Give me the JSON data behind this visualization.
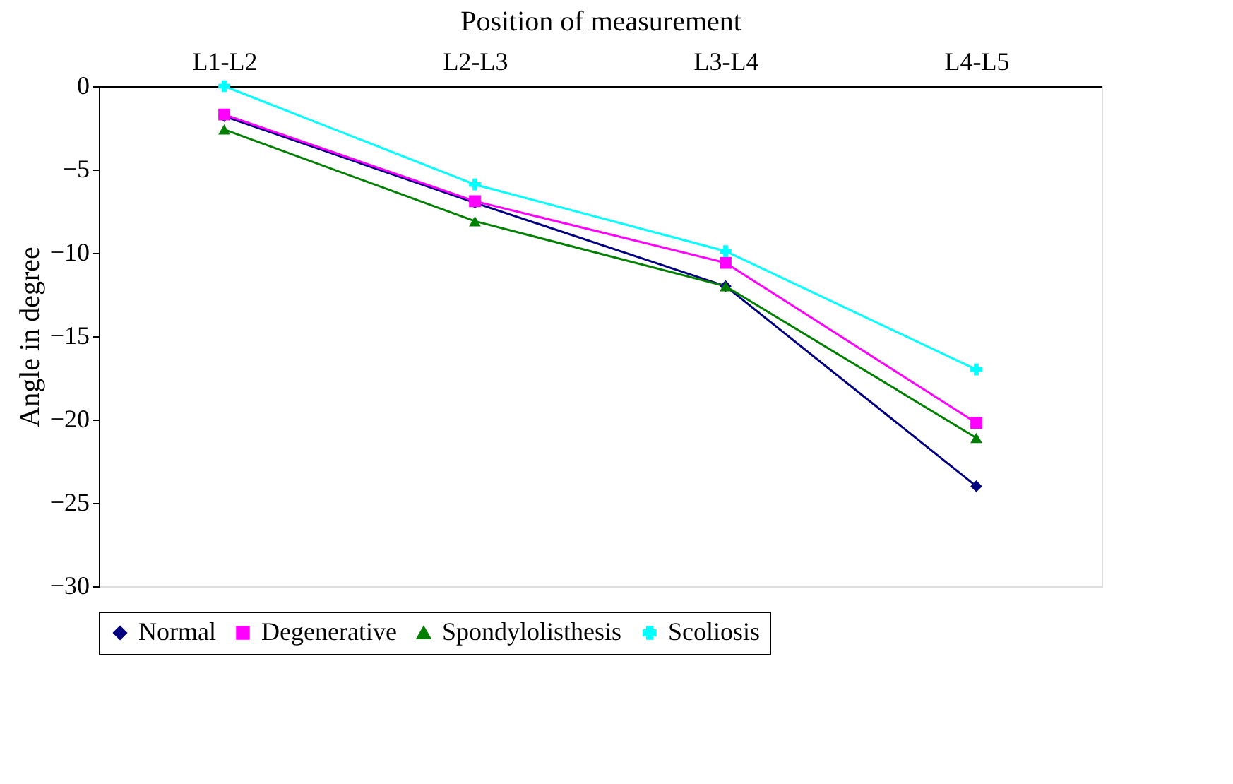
{
  "chart_data": {
    "type": "line",
    "xlabel": "Position of measurement",
    "ylabel": "Angle in degree",
    "categories": [
      "L1-L2",
      "L2-L3",
      "L3-L4",
      "L4-L5"
    ],
    "series": [
      {
        "name": "Normal",
        "color": "#000080",
        "marker": "diamond",
        "values": [
          -1.8,
          -7.0,
          -12.0,
          -24.0
        ]
      },
      {
        "name": "Degenerative",
        "color": "#ff00ff",
        "marker": "square",
        "values": [
          -1.7,
          -6.9,
          -10.6,
          -20.2
        ]
      },
      {
        "name": "Spondylolisthesis",
        "color": "#008000",
        "marker": "triangle",
        "values": [
          -2.6,
          -8.1,
          -12.0,
          -21.1
        ]
      },
      {
        "name": "Scoliosis",
        "color": "#00ffff",
        "marker": "cross",
        "values": [
          0,
          -5.9,
          -9.9,
          -17.0
        ]
      }
    ],
    "ylim": [
      -30,
      0
    ],
    "yticks": [
      0,
      -5,
      -10,
      -15,
      -20,
      -25,
      -30
    ],
    "grid": false,
    "legend": "bottom",
    "line_style": "solid"
  }
}
